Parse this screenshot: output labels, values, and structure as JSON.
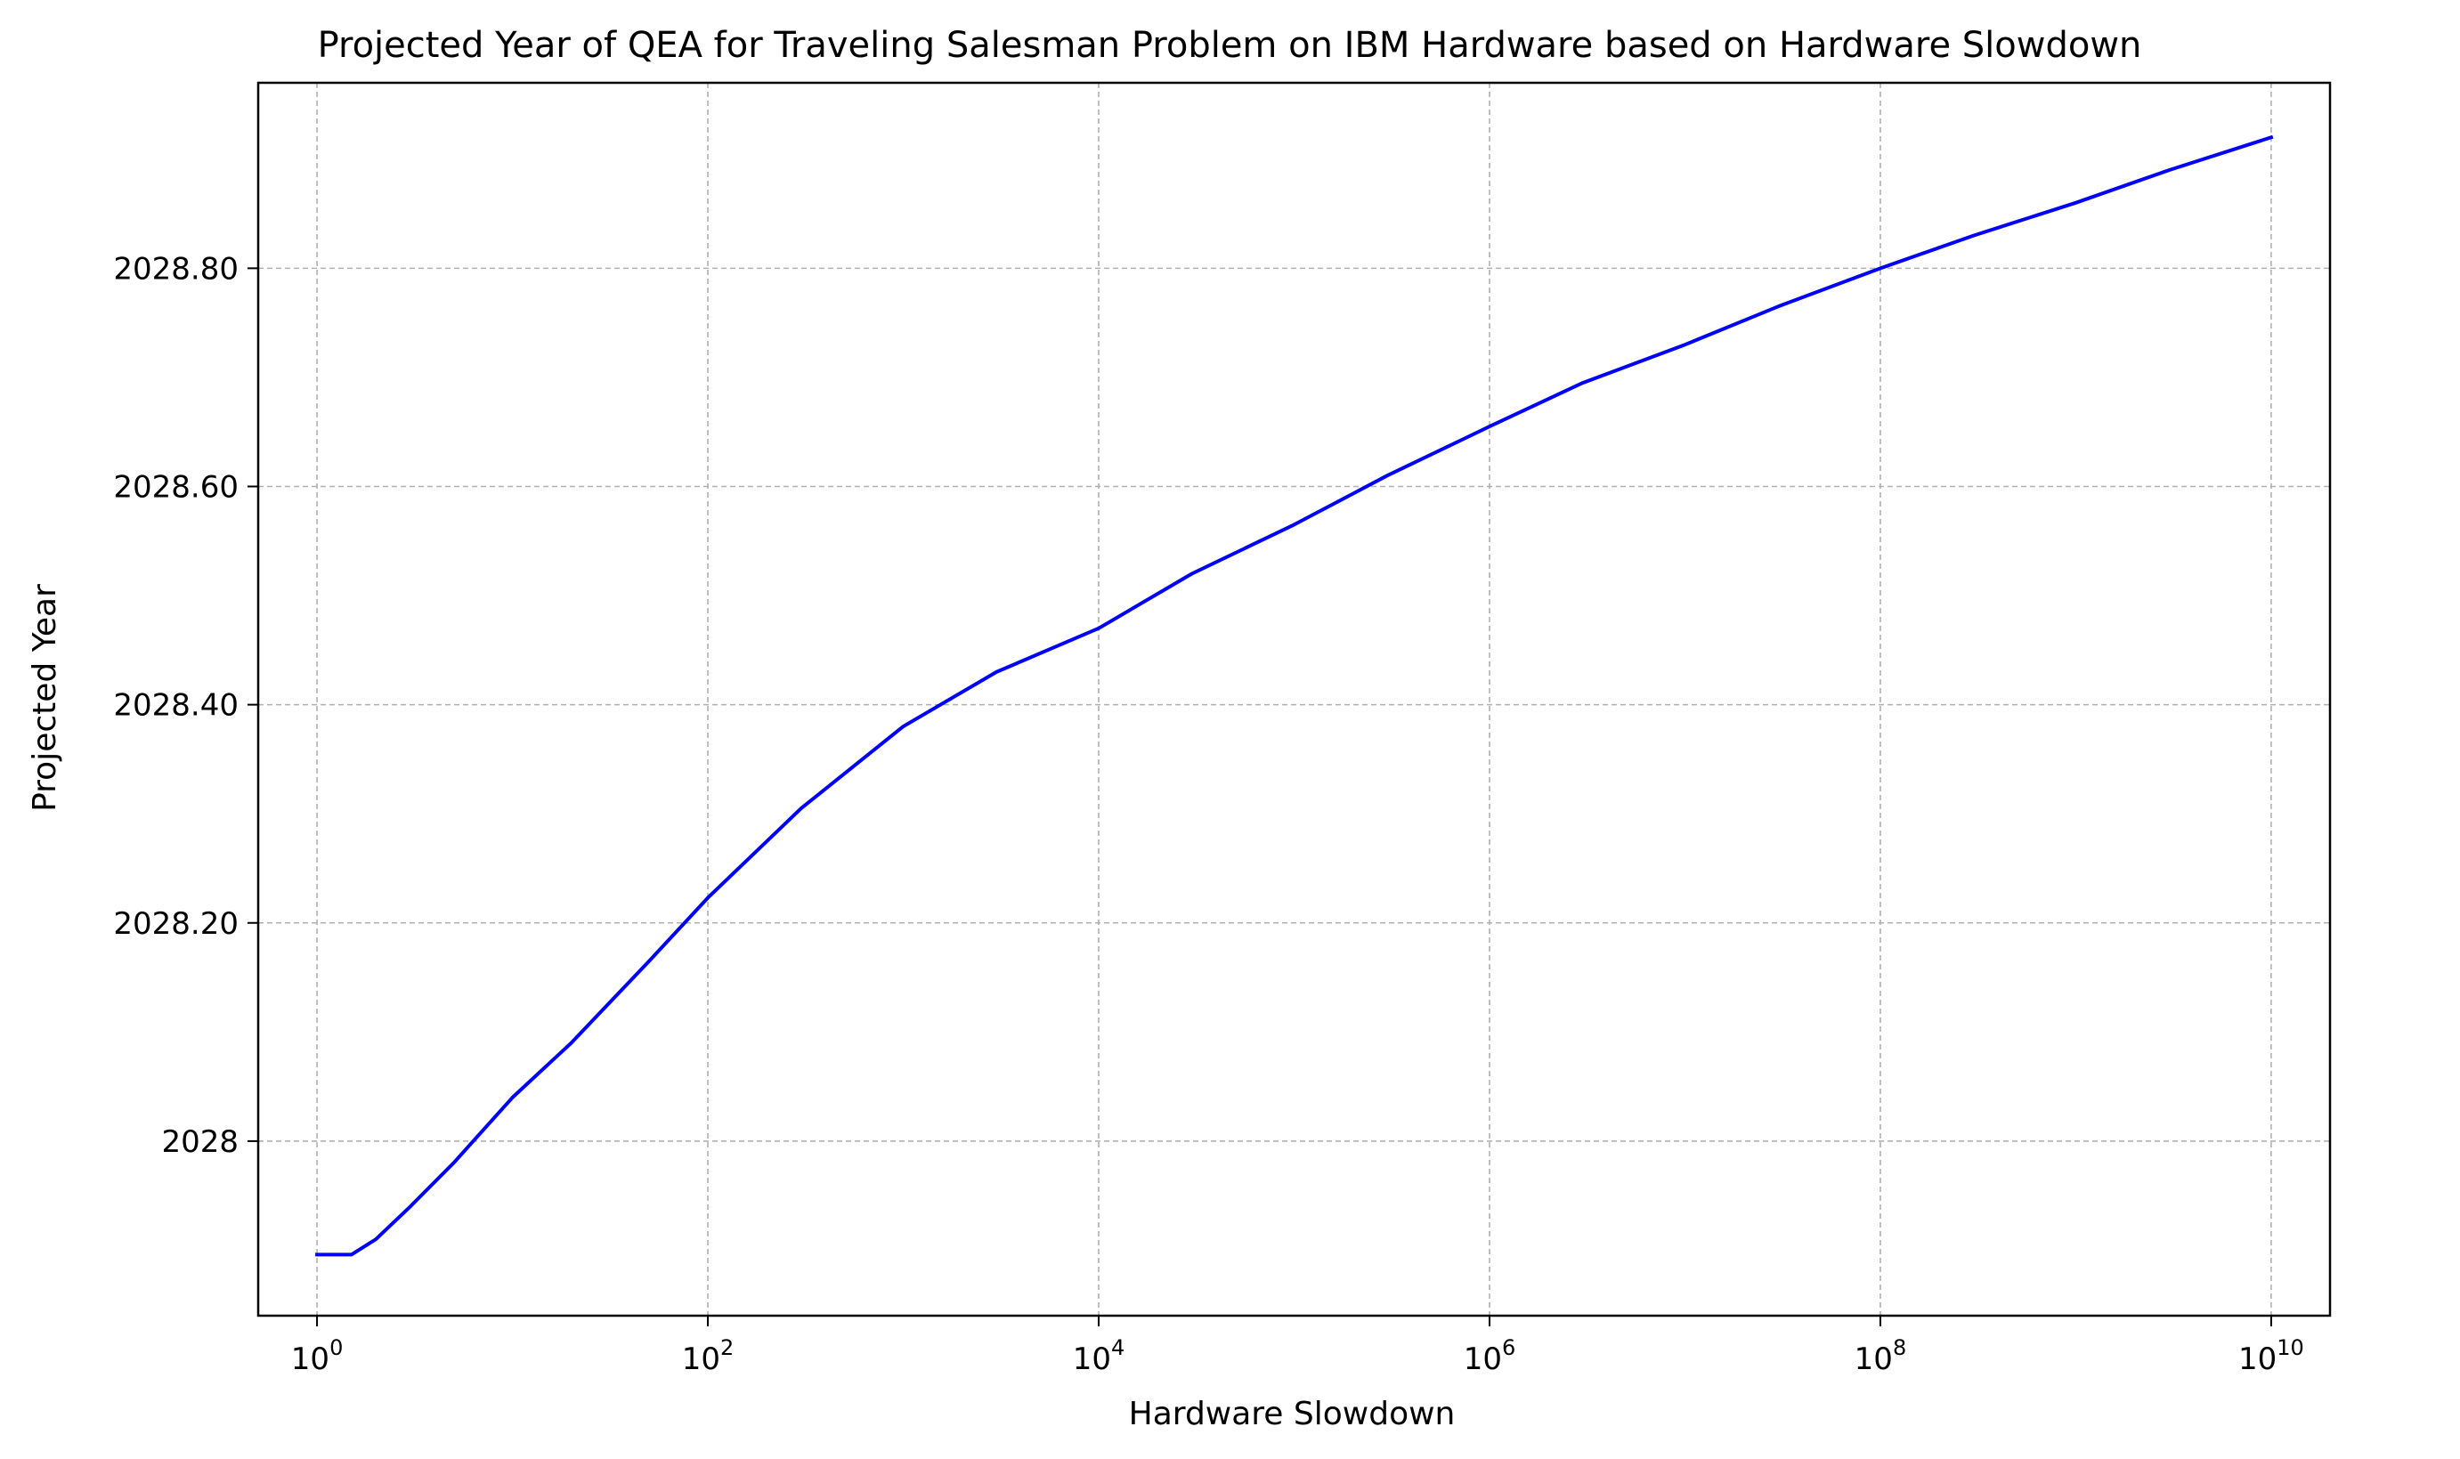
{
  "chart_data": {
    "type": "line",
    "title": "Projected Year of QEA for Traveling Salesman Problem on IBM Hardware based on Hardware Slowdown",
    "xlabel": "Hardware Slowdown",
    "ylabel": "Projected Year",
    "x_scale": "log",
    "xlim": [
      0.5,
      20000000000
    ],
    "ylim": [
      2027.84,
      2028.97
    ],
    "grid": true,
    "x_ticks": [
      {
        "value": 1,
        "base": "10",
        "exp": "0"
      },
      {
        "value": 100,
        "base": "10",
        "exp": "2"
      },
      {
        "value": 10000,
        "base": "10",
        "exp": "4"
      },
      {
        "value": 1000000,
        "base": "10",
        "exp": "6"
      },
      {
        "value": 100000000,
        "base": "10",
        "exp": "8"
      },
      {
        "value": 10000000000,
        "base": "10",
        "exp": "10"
      }
    ],
    "y_ticks": [
      {
        "value": 2028.0,
        "label": "2028"
      },
      {
        "value": 2028.2,
        "label": "2028.20"
      },
      {
        "value": 2028.4,
        "label": "2028.40"
      },
      {
        "value": 2028.6,
        "label": "2028.60"
      },
      {
        "value": 2028.8,
        "label": "2028.80"
      }
    ],
    "series": [
      {
        "color": "#0000ff",
        "x": [
          1,
          1.5,
          2,
          3,
          5,
          10,
          20,
          50,
          100,
          300,
          1000,
          3000,
          10000,
          30000,
          100000,
          300000,
          1000000,
          3000000,
          10000000,
          30000000,
          100000000,
          300000000,
          1000000000,
          3000000000,
          10000000000
        ],
        "y": [
          2027.896,
          2027.896,
          2027.91,
          2027.94,
          2027.98,
          2028.04,
          2028.09,
          2028.165,
          2028.223,
          2028.305,
          2028.38,
          2028.43,
          2028.47,
          2028.52,
          2028.565,
          2028.61,
          2028.655,
          2028.695,
          2028.73,
          2028.765,
          2028.8,
          2028.83,
          2028.86,
          2028.89,
          2028.92
        ]
      }
    ]
  }
}
